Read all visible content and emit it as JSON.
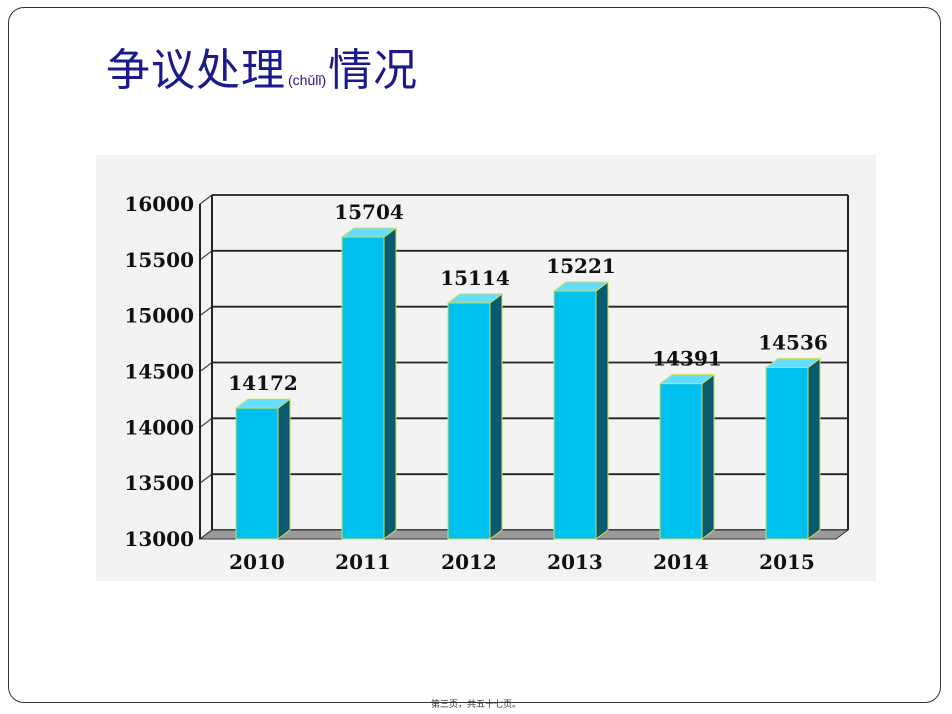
{
  "slide": {
    "title": "争议处理",
    "title_ruby": "(chǔlǐ)",
    "title_suffix": "情况",
    "footer": "第三页，共五十七页。"
  },
  "colors": {
    "title": "#1a1a8c",
    "bar_front": "#00c0f0",
    "bar_side": "#0a5a70",
    "bar_top": "#66dcff"
  },
  "chart_data": {
    "type": "bar",
    "categories": [
      "2010",
      "2011",
      "2012",
      "2013",
      "2014",
      "2015"
    ],
    "values": [
      14172,
      15704,
      15114,
      15221,
      14391,
      14536
    ],
    "ylim": [
      13000,
      16000
    ],
    "yticks": [
      "16000",
      "15500",
      "15000",
      "14500",
      "14000",
      "13500",
      "13000"
    ],
    "grid": true,
    "legend": "none",
    "title": "",
    "xlabel": "",
    "ylabel": ""
  }
}
